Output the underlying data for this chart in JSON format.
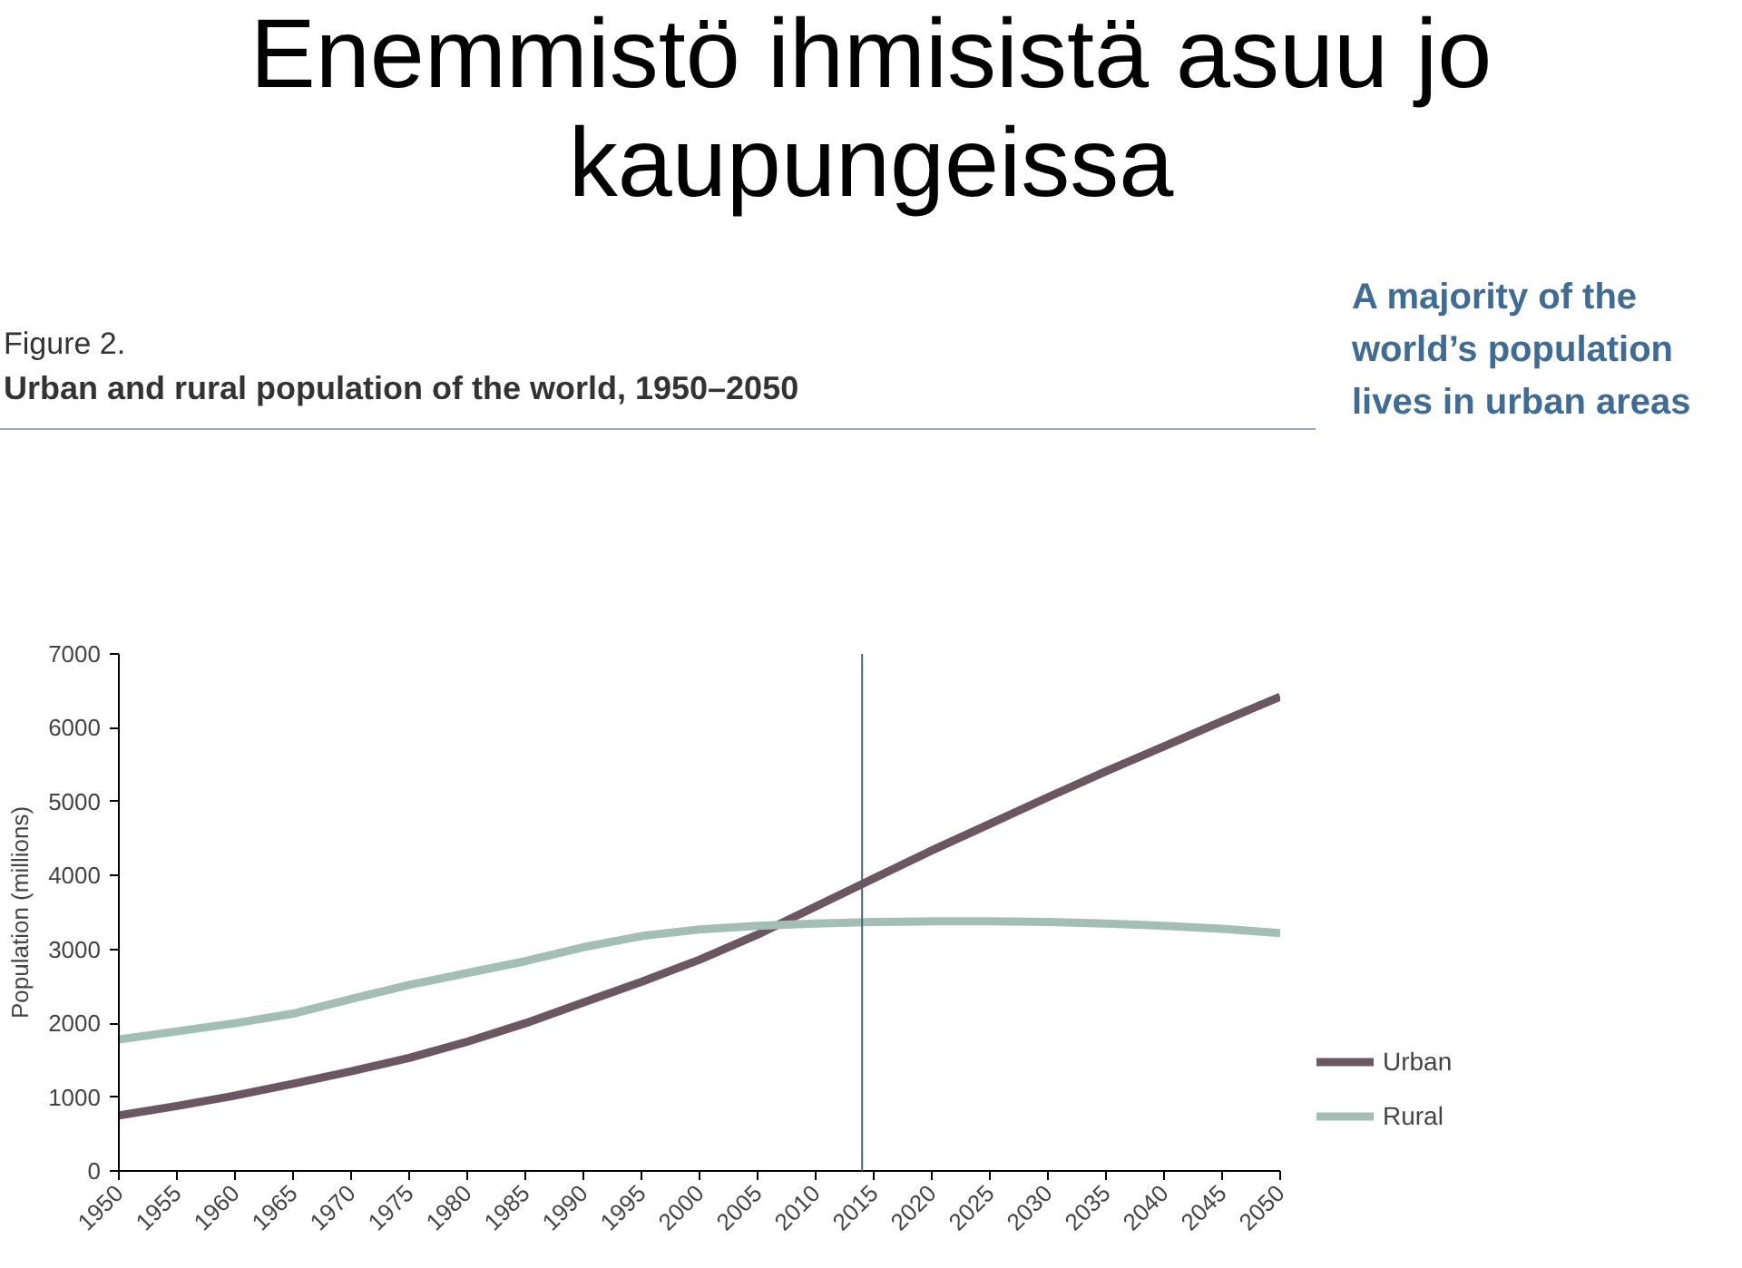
{
  "chart_data": {
    "type": "line",
    "title": "Enemmistö ihmisistä asuu jo kaupungeissa",
    "subtitle": "Figure 2.\nUrban and rural population of the world, 1950–2050",
    "ylabel": "Population (millions)",
    "annotations": [
      "A majority of the world’s population lives in urban areas"
    ],
    "x": [
      1950,
      1955,
      1960,
      1965,
      1970,
      1975,
      1980,
      1985,
      1990,
      1995,
      2000,
      2005,
      2010,
      2015,
      2020,
      2025,
      2030,
      2035,
      2040,
      2045,
      2050
    ],
    "series": [
      {
        "name": "Urban",
        "color": "#6b5662",
        "values": [
          750,
          880,
          1020,
          1180,
          1350,
          1530,
          1750,
          2000,
          2280,
          2560,
          2860,
          3200,
          3580,
          3960,
          4340,
          4700,
          5060,
          5410,
          5750,
          6090,
          6420
        ]
      },
      {
        "name": "Rural",
        "color": "#a3beb5",
        "values": [
          1780,
          1890,
          2000,
          2130,
          2330,
          2520,
          2680,
          2840,
          3030,
          3180,
          3270,
          3320,
          3350,
          3370,
          3380,
          3380,
          3370,
          3350,
          3320,
          3280,
          3220
        ]
      }
    ],
    "xlim": [
      1950,
      2050
    ],
    "ylim": [
      0,
      7000
    ],
    "xticks": [
      1950,
      1955,
      1960,
      1965,
      1970,
      1975,
      1980,
      1985,
      1990,
      1995,
      2000,
      2005,
      2010,
      2015,
      2020,
      2025,
      2030,
      2035,
      2040,
      2045,
      2050
    ],
    "yticks": [
      0,
      1000,
      2000,
      3000,
      4000,
      5000,
      6000,
      7000
    ],
    "ref_lines": [
      {
        "axis": "x",
        "value": 2014,
        "label": null,
        "color": "#4a6470"
      }
    ],
    "grid": false,
    "legend": "bottom right",
    "line_style": "solid",
    "marker": "none"
  }
}
